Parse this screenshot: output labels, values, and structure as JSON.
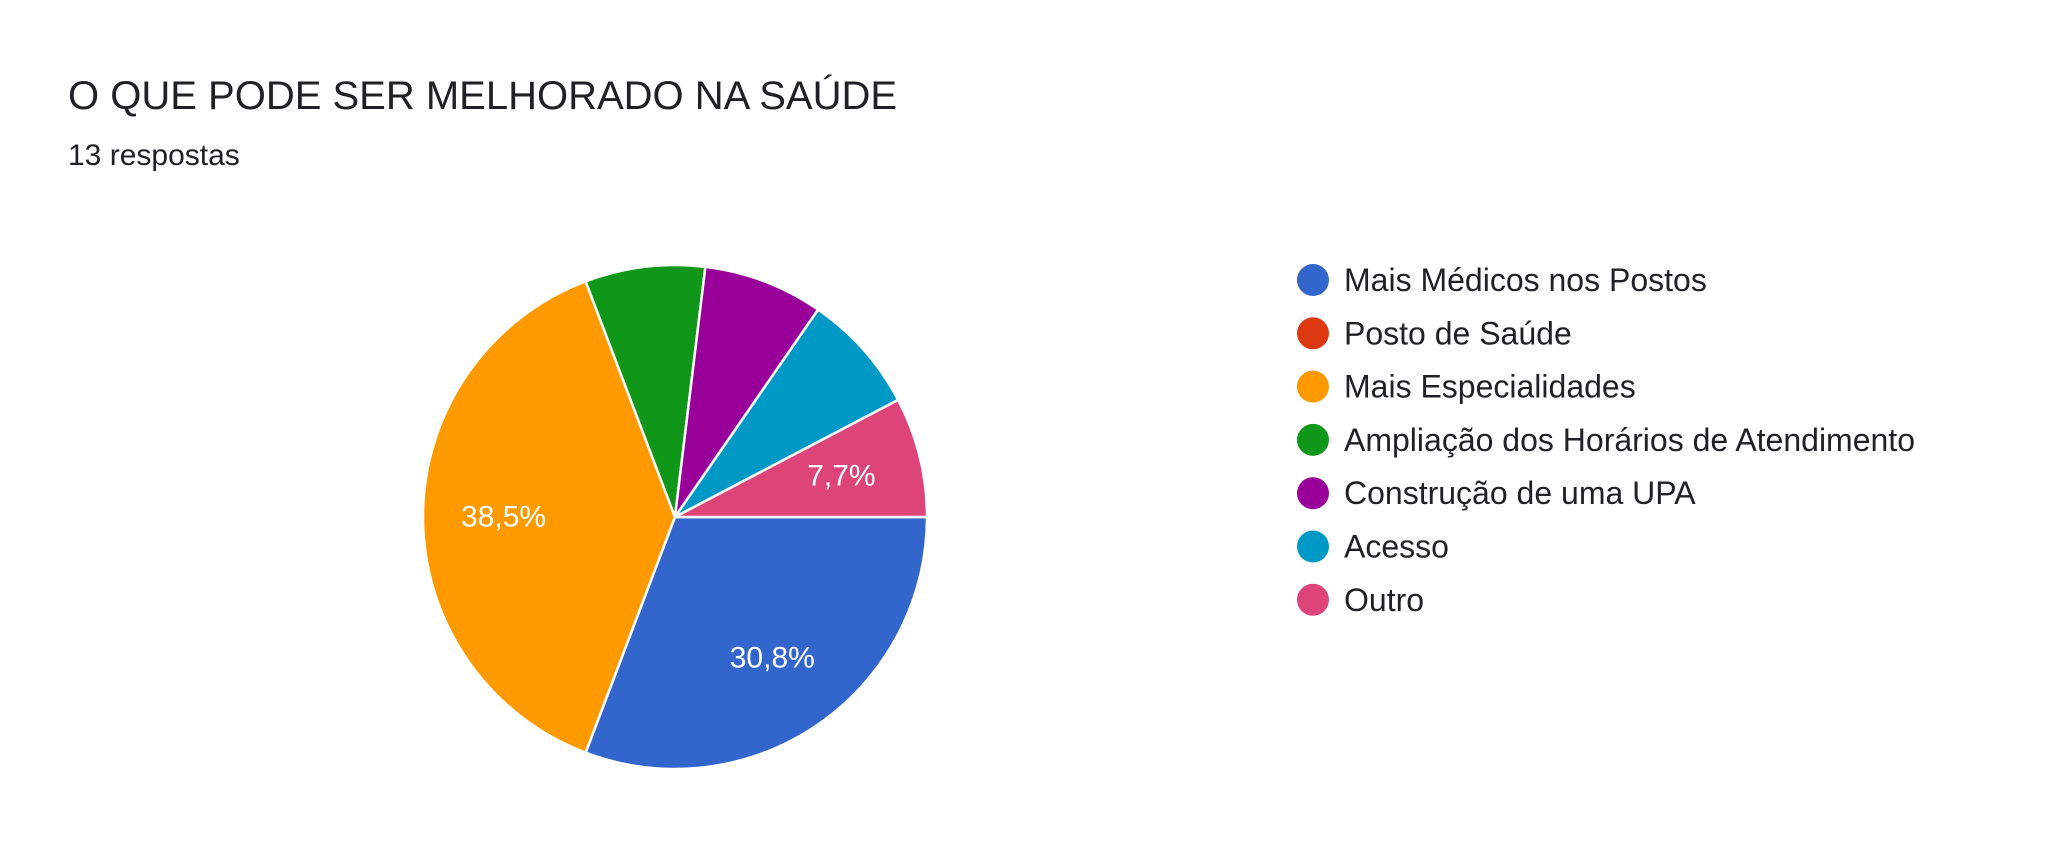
{
  "header": {
    "title": "O QUE PODE SER MELHORADO NA SAÚDE",
    "subtitle": "13 respostas"
  },
  "chart_data": {
    "type": "pie",
    "title": "O QUE PODE SER MELHORADO NA SAÚDE",
    "subtitle": "13 respostas",
    "total": 13,
    "legend_position": "right",
    "slices": [
      {
        "label": "Mais Médicos nos Postos",
        "count": 4,
        "percent": 30.8,
        "percent_label": "30,8%",
        "color": "#3366cc",
        "show_label": true
      },
      {
        "label": "Posto de Saúde",
        "count": 0,
        "percent": 0,
        "percent_label": "",
        "color": "#dc3912",
        "show_label": false
      },
      {
        "label": "Mais Especialidades",
        "count": 5,
        "percent": 38.5,
        "percent_label": "38,5%",
        "color": "#ff9900",
        "show_label": true
      },
      {
        "label": "Ampliação dos Horários de Atendimento",
        "count": 1,
        "percent": 7.7,
        "percent_label": "",
        "color": "#109618",
        "show_label": false
      },
      {
        "label": "Construção de uma UPA",
        "count": 1,
        "percent": 7.7,
        "percent_label": "",
        "color": "#990099",
        "show_label": false
      },
      {
        "label": "Acesso",
        "count": 1,
        "percent": 7.7,
        "percent_label": "",
        "color": "#0099c6",
        "show_label": false
      },
      {
        "label": "Outro",
        "count": 1,
        "percent": 7.7,
        "percent_label": "7,7%",
        "color": "#dd4477",
        "show_label": true
      }
    ]
  }
}
